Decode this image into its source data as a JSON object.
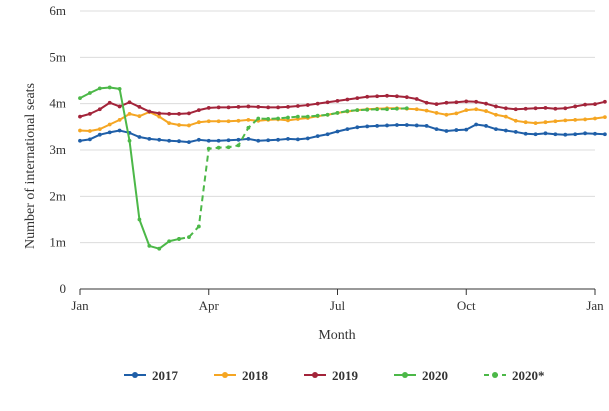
{
  "chart_data": {
    "type": "line",
    "title": "",
    "xlabel": "Month",
    "ylabel": "Number of international seats",
    "x_ticks": [
      {
        "label": "Jan",
        "week": 0
      },
      {
        "label": "Apr",
        "week": 13
      },
      {
        "label": "Jul",
        "week": 26
      },
      {
        "label": "Oct",
        "week": 39
      },
      {
        "label": "Jan",
        "week": 52
      }
    ],
    "y_ticks": [
      {
        "label": "0",
        "value": 0
      },
      {
        "label": "1m",
        "value": 1
      },
      {
        "label": "2m",
        "value": 2
      },
      {
        "label": "3m",
        "value": 3
      },
      {
        "label": "4m",
        "value": 4
      },
      {
        "label": "5m",
        "value": 5
      },
      {
        "label": "6m",
        "value": 6
      }
    ],
    "x_unit": "week of year",
    "ylim": [
      0,
      6
    ],
    "xlim": [
      0,
      52
    ],
    "grid": "horizontal",
    "legend_position": "bottom",
    "series": [
      {
        "name": "2017",
        "color": "#1f5fa8",
        "dashed": false,
        "start_week": 0,
        "values": [
          3.2,
          3.23,
          3.33,
          3.38,
          3.42,
          3.37,
          3.28,
          3.24,
          3.22,
          3.2,
          3.19,
          3.17,
          3.22,
          3.2,
          3.2,
          3.21,
          3.22,
          3.24,
          3.2,
          3.21,
          3.22,
          3.24,
          3.23,
          3.25,
          3.3,
          3.34,
          3.4,
          3.45,
          3.49,
          3.51,
          3.52,
          3.53,
          3.54,
          3.54,
          3.53,
          3.52,
          3.45,
          3.41,
          3.43,
          3.44,
          3.55,
          3.52,
          3.45,
          3.42,
          3.39,
          3.35,
          3.34,
          3.36,
          3.34,
          3.33,
          3.34,
          3.36,
          3.35,
          3.34
        ]
      },
      {
        "name": "2018",
        "color": "#f5a623",
        "dashed": false,
        "start_week": 0,
        "values": [
          3.42,
          3.41,
          3.45,
          3.55,
          3.65,
          3.78,
          3.73,
          3.82,
          3.72,
          3.58,
          3.54,
          3.53,
          3.6,
          3.62,
          3.62,
          3.62,
          3.63,
          3.65,
          3.63,
          3.65,
          3.66,
          3.64,
          3.67,
          3.69,
          3.73,
          3.76,
          3.8,
          3.83,
          3.86,
          3.88,
          3.89,
          3.9,
          3.9,
          3.89,
          3.88,
          3.85,
          3.8,
          3.76,
          3.79,
          3.86,
          3.88,
          3.84,
          3.76,
          3.72,
          3.63,
          3.6,
          3.58,
          3.6,
          3.62,
          3.64,
          3.65,
          3.66,
          3.68,
          3.71
        ]
      },
      {
        "name": "2019",
        "color": "#a3243a",
        "dashed": false,
        "start_week": 0,
        "values": [
          3.72,
          3.78,
          3.88,
          4.02,
          3.94,
          4.03,
          3.93,
          3.83,
          3.79,
          3.78,
          3.78,
          3.79,
          3.86,
          3.91,
          3.92,
          3.92,
          3.93,
          3.94,
          3.93,
          3.92,
          3.92,
          3.93,
          3.95,
          3.97,
          4.0,
          4.03,
          4.06,
          4.09,
          4.12,
          4.15,
          4.16,
          4.17,
          4.16,
          4.14,
          4.1,
          4.02,
          3.99,
          4.02,
          4.03,
          4.05,
          4.04,
          4.0,
          3.94,
          3.9,
          3.88,
          3.89,
          3.9,
          3.91,
          3.89,
          3.9,
          3.94,
          3.98,
          3.99,
          4.04
        ]
      },
      {
        "name": "2020",
        "color": "#4cb848",
        "dashed": false,
        "start_week": 0,
        "values": [
          4.12,
          4.23,
          4.33,
          4.35,
          4.32,
          3.2,
          1.5,
          0.93,
          0.87,
          1.03,
          1.08
        ]
      },
      {
        "name": "2020*",
        "color": "#4cb848",
        "dashed": true,
        "start_week": 10,
        "values": [
          1.08,
          1.12,
          1.35,
          3.03,
          3.05,
          3.06,
          3.1,
          3.48,
          3.68,
          3.67,
          3.68,
          3.7,
          3.72,
          3.72,
          3.74,
          3.76,
          3.8,
          3.84,
          3.86,
          3.87,
          3.88,
          3.88,
          3.89,
          3.9
        ]
      }
    ]
  }
}
